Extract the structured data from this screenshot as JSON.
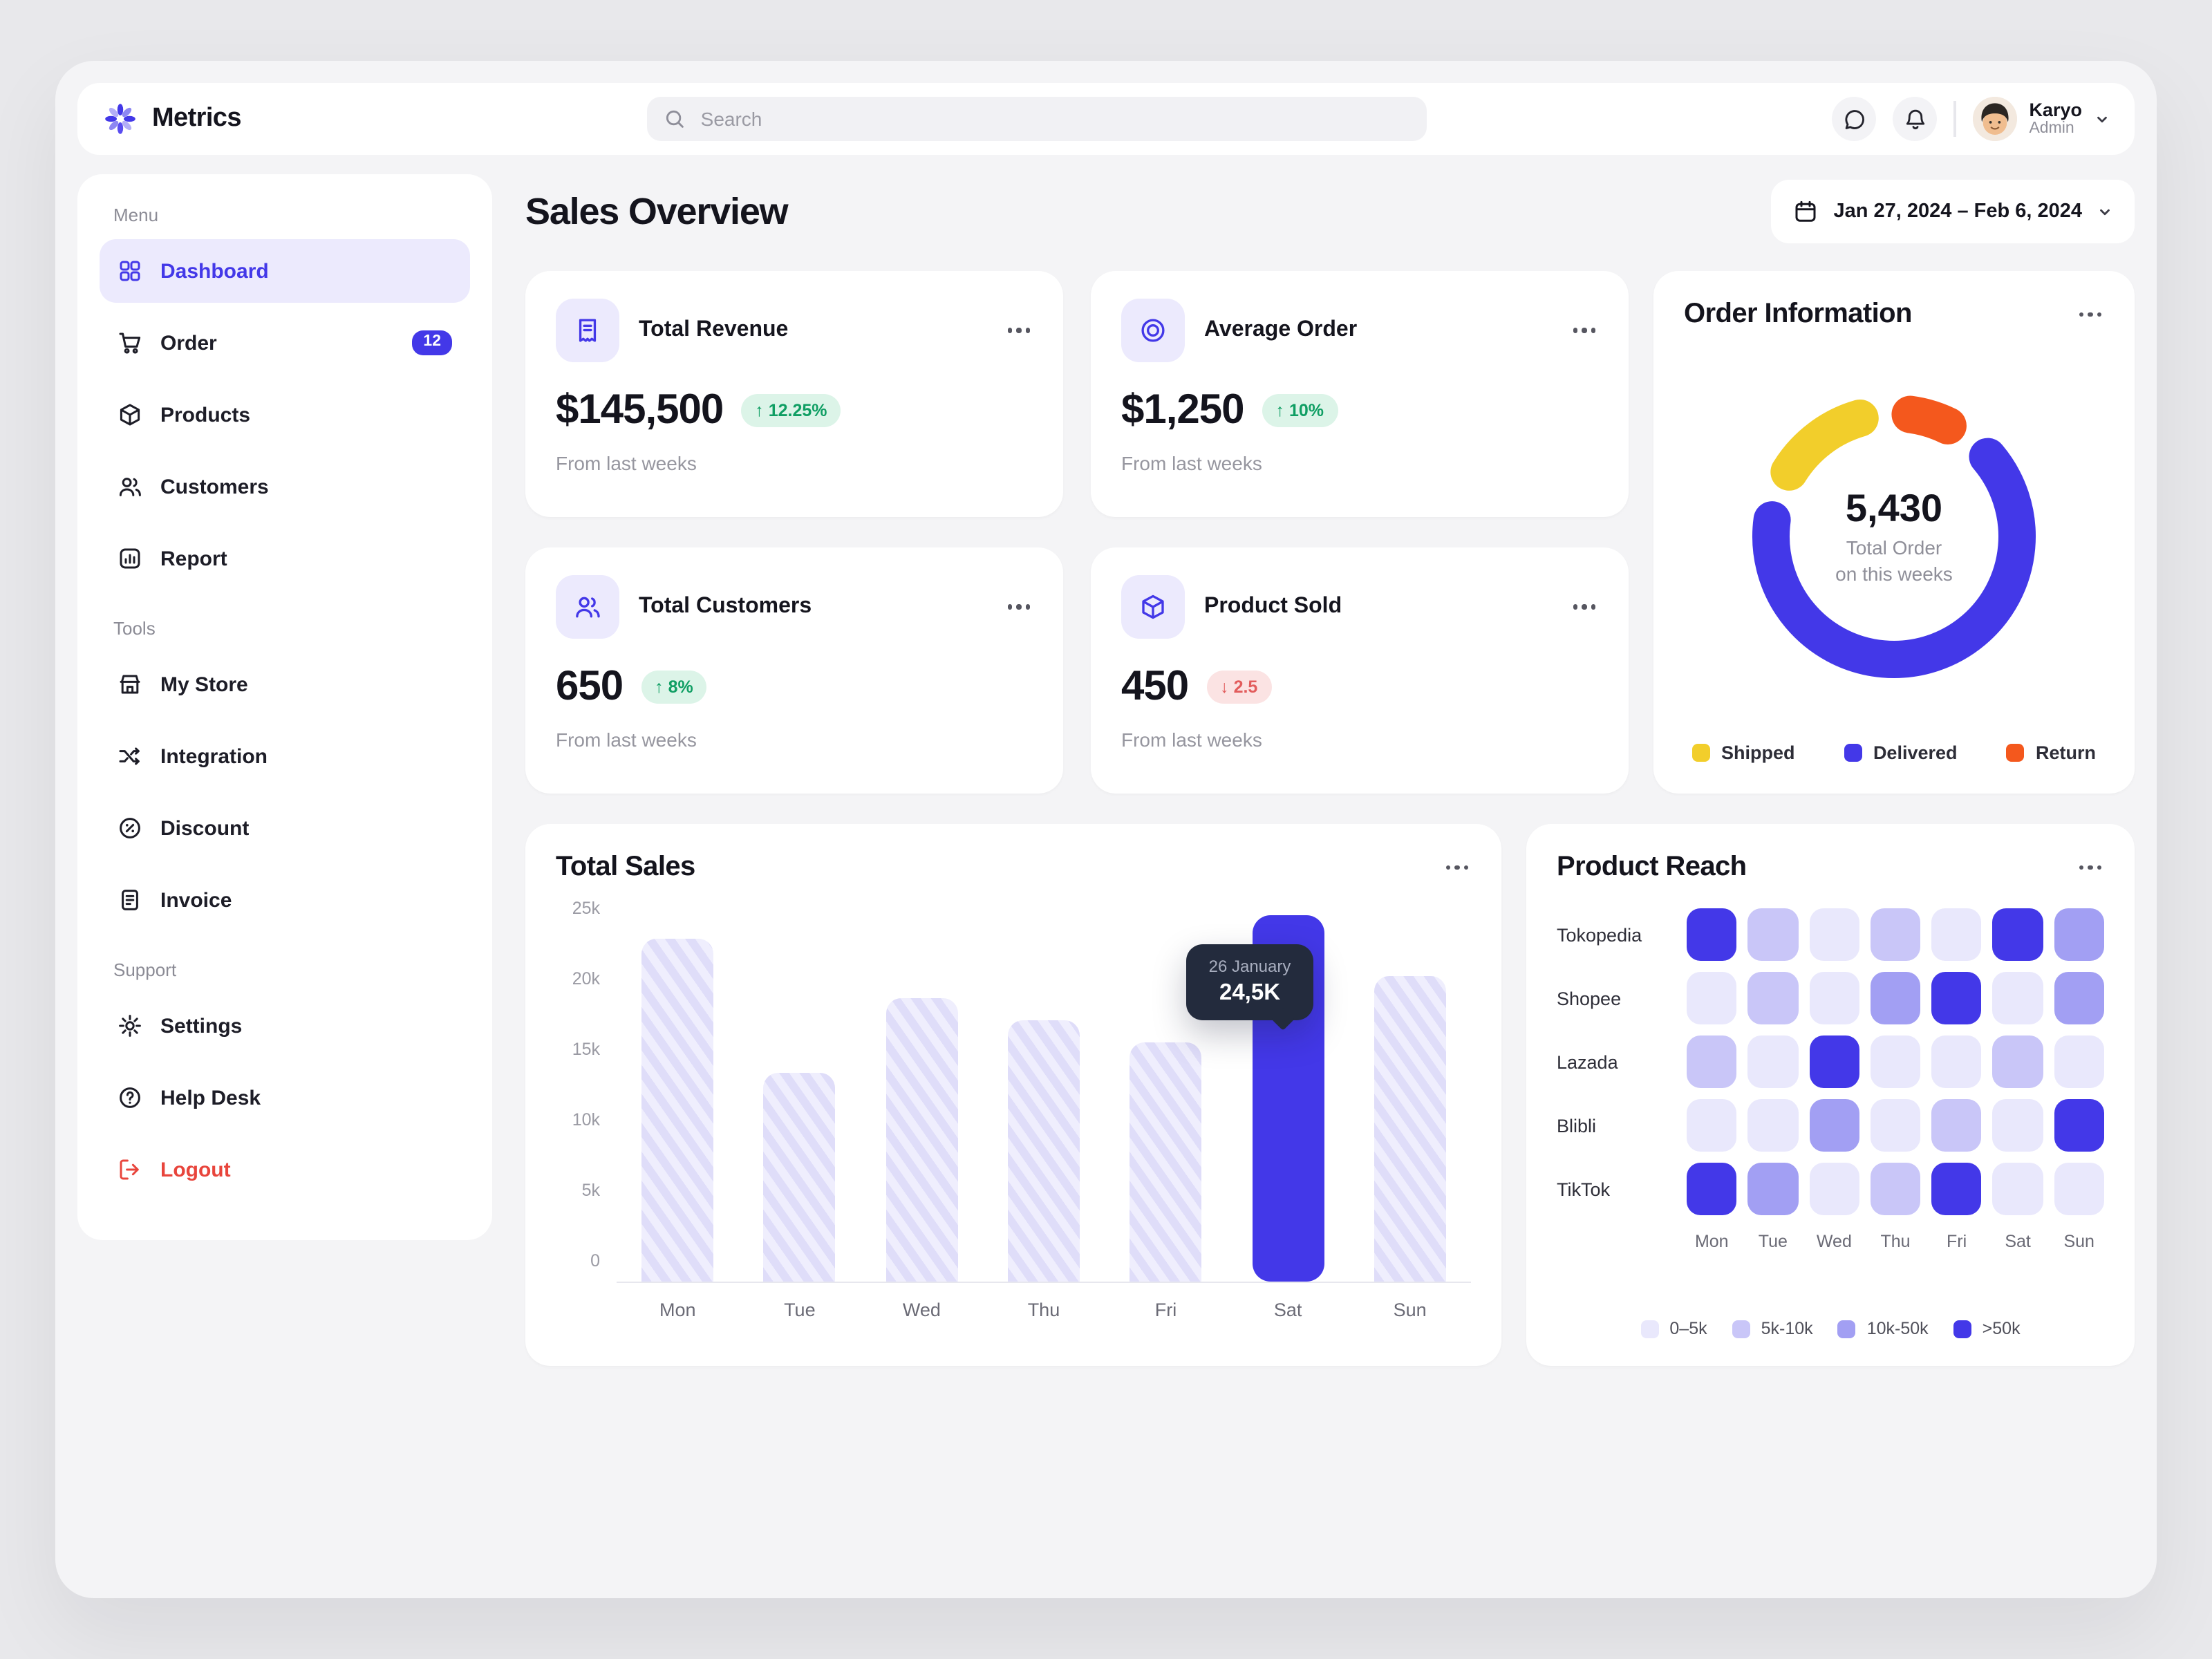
{
  "app": {
    "logo_text": "Metrics"
  },
  "colors": {
    "accent": "#4338e8",
    "green": "#0f9e63",
    "red": "#e25c5c",
    "yellow": "#f2ce2b",
    "orange": "#f4581d"
  },
  "topbar": {
    "search_placeholder": "Search",
    "user": {
      "name": "Karyo",
      "role": "Admin"
    }
  },
  "sidebar": {
    "sections": [
      {
        "label": "Menu",
        "items": [
          {
            "label": "Dashboard",
            "icon": "dashboard-icon",
            "active": true
          },
          {
            "label": "Order",
            "icon": "cart-icon",
            "badge": "12"
          },
          {
            "label": "Products",
            "icon": "box-icon"
          },
          {
            "label": "Customers",
            "icon": "customers-icon"
          },
          {
            "label": "Report",
            "icon": "report-icon"
          }
        ]
      },
      {
        "label": "Tools",
        "items": [
          {
            "label": "My Store",
            "icon": "store-icon"
          },
          {
            "label": "Integration",
            "icon": "integration-icon"
          },
          {
            "label": "Discount",
            "icon": "discount-icon"
          },
          {
            "label": "Invoice",
            "icon": "invoice-icon"
          }
        ]
      },
      {
        "label": "Support",
        "items": [
          {
            "label": "Settings",
            "icon": "settings-icon"
          },
          {
            "label": "Help Desk",
            "icon": "help-icon"
          },
          {
            "label": "Logout",
            "icon": "logout-icon",
            "danger": true
          }
        ]
      }
    ]
  },
  "main": {
    "title": "Sales Overview",
    "date_range": "Jan 27, 2024 – Feb 6, 2024",
    "stats": [
      {
        "title": "Total Revenue",
        "icon": "receipt-icon",
        "value": "$145,500",
        "change": "12.25%",
        "direction": "up",
        "note": "From last weeks"
      },
      {
        "title": "Average Order",
        "icon": "coin-icon",
        "value": "$1,250",
        "change": "10%",
        "direction": "up",
        "note": "From last weeks"
      },
      {
        "title": "Total Customers",
        "icon": "customers-icon",
        "value": "650",
        "change": "8%",
        "direction": "up",
        "note": "From last weeks"
      },
      {
        "title": "Product Sold",
        "icon": "box-icon",
        "value": "450",
        "change": "2.5",
        "direction": "down",
        "note": "From last weeks"
      }
    ],
    "cards": {
      "order_information": {
        "title": "Order Information"
      },
      "total_sales": {
        "title": "Total Sales"
      },
      "product_reach": {
        "title": "Product Reach"
      }
    }
  },
  "chart_data": [
    {
      "type": "donut",
      "title": "Order Information",
      "center_value": "5,430",
      "center_label_line1": "Total Order",
      "center_label_line2": "on this weeks",
      "segments": [
        {
          "name": "Shipped",
          "color": "#f2ce2b",
          "start_deg": 302,
          "sweep_deg": 42
        },
        {
          "name": "Delivered",
          "color": "#4338e8",
          "start_deg": 50,
          "sweep_deg": 228
        },
        {
          "name": "Return",
          "color": "#f4581d",
          "start_deg": 8,
          "sweep_deg": 18
        }
      ],
      "legend": [
        "Shipped",
        "Delivered",
        "Return"
      ],
      "legend_position": "bottom"
    },
    {
      "type": "bar",
      "title": "Total Sales",
      "categories": [
        "Mon",
        "Tue",
        "Wed",
        "Thu",
        "Fri",
        "Sat",
        "Sun"
      ],
      "values": [
        23000,
        14000,
        19000,
        17500,
        16000,
        24500,
        20500
      ],
      "highlight_index": 5,
      "tooltip": {
        "date": "26 January",
        "value": "24,5K"
      },
      "ylim": [
        0,
        25000
      ],
      "yticks": [
        "25k",
        "20k",
        "15k",
        "10k",
        "5k",
        "0"
      ],
      "grid": false
    },
    {
      "type": "heatmap",
      "title": "Product Reach",
      "rows": [
        "Tokopedia",
        "Shopee",
        "Lazada",
        "Blibli",
        "TikTok"
      ],
      "cols": [
        "Mon",
        "Tue",
        "Wed",
        "Thu",
        "Fri",
        "Sat",
        "Sun"
      ],
      "levels": [
        [
          4,
          2,
          1,
          2,
          1,
          4,
          3
        ],
        [
          1,
          2,
          1,
          3,
          4,
          1,
          3
        ],
        [
          2,
          1,
          4,
          1,
          1,
          2,
          1
        ],
        [
          1,
          1,
          3,
          1,
          2,
          1,
          4
        ],
        [
          4,
          3,
          1,
          2,
          4,
          1,
          1
        ]
      ],
      "level_colors": {
        "1": "#e9e8fc",
        "2": "#c9c6f8",
        "3": "#a29ff3",
        "4": "#4338e8"
      },
      "legend": [
        {
          "label": "0–5k",
          "level": 1
        },
        {
          "label": "5k-10k",
          "level": 2
        },
        {
          "label": "10k-50k",
          "level": 3
        },
        {
          "label": ">50k",
          "level": 4
        }
      ]
    }
  ]
}
